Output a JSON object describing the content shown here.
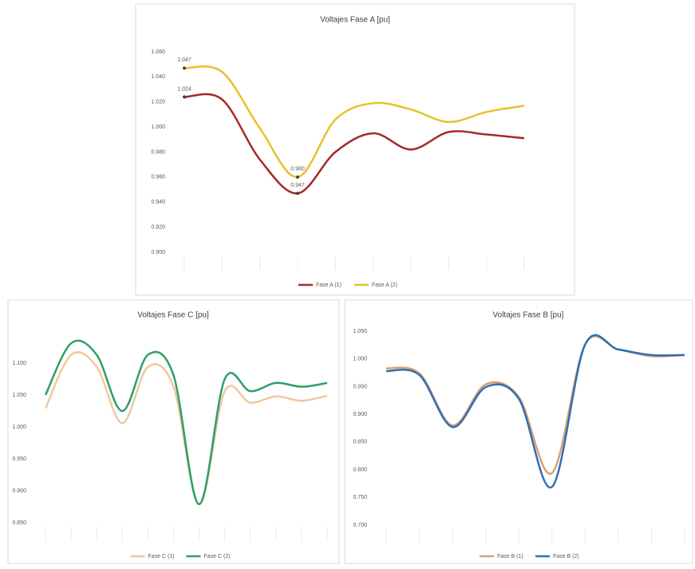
{
  "chart_data": [
    {
      "type": "line",
      "title": "Voltajes Fase A [pu]",
      "categories": [
        null,
        null,
        null,
        null,
        null,
        null,
        null,
        null,
        null,
        null
      ],
      "ylim": [
        0.9,
        1.06
      ],
      "yticks": [
        {
          "value": 1.06,
          "label": "1.060"
        },
        {
          "value": 1.04,
          "label": "1.040"
        },
        {
          "value": 1.02,
          "label": "1.020"
        },
        {
          "value": 1.0,
          "label": "1.000"
        },
        {
          "value": 0.98,
          "label": "0.980"
        },
        {
          "value": 0.96,
          "label": "0.960"
        },
        {
          "value": 0.94,
          "label": "0.940"
        },
        {
          "value": 0.92,
          "label": "0.920"
        },
        {
          "value": 0.9,
          "label": "0.900"
        }
      ],
      "series": [
        {
          "name": "Fase A (1)",
          "color": "#a52a2a",
          "values": [
            1.024,
            1.022,
            0.974,
            0.947,
            0.98,
            0.995,
            0.982,
            0.996,
            0.994,
            0.991
          ],
          "value_labels": [
            "1.024",
            null,
            null,
            "0.947",
            null,
            null,
            null,
            null,
            null,
            null
          ]
        },
        {
          "name": "Fase A (2)",
          "color": "#e6c229",
          "values": [
            1.047,
            1.044,
            0.999,
            0.96,
            1.006,
            1.019,
            1.014,
            1.004,
            1.012,
            1.017
          ],
          "value_labels": [
            "1.047",
            null,
            null,
            "0.960",
            null,
            null,
            null,
            null,
            null,
            null
          ]
        }
      ],
      "legend": "bottom",
      "grid": false
    },
    {
      "type": "line",
      "title": "Voltajes Fase C [pu]",
      "categories": [
        null,
        null,
        null,
        null,
        null,
        null,
        null,
        null,
        null,
        null,
        null,
        null
      ],
      "ylim": [
        0.85,
        1.1
      ],
      "yticks": [
        {
          "value": 1.1,
          "label": "1.100"
        },
        {
          "value": 1.05,
          "label": "1.050"
        },
        {
          "value": 1.0,
          "label": "1.000"
        },
        {
          "value": 0.95,
          "label": "0.950"
        },
        {
          "value": 0.9,
          "label": "0.900"
        },
        {
          "value": 0.85,
          "label": "0.850"
        }
      ],
      "series": [
        {
          "name": "Fase C (1)",
          "color": "#f0c8a0",
          "values": [
            1.029,
            1.113,
            1.094,
            1.006,
            1.094,
            1.063,
            0.879,
            1.056,
            1.038,
            1.048,
            1.041,
            1.049
          ]
        },
        {
          "name": "Fase C (2)",
          "color": "#2e9e6a",
          "values": [
            1.05,
            1.131,
            1.113,
            1.025,
            1.113,
            1.081,
            0.879,
            1.075,
            1.056,
            1.069,
            1.063,
            1.069
          ]
        }
      ],
      "legend": "bottom",
      "grid": false
    },
    {
      "type": "line",
      "title": "Voltajes Fase B [pu]",
      "categories": [
        null,
        null,
        null,
        null,
        null,
        null,
        null,
        null,
        null,
        null
      ],
      "ylim": [
        0.7,
        1.05
      ],
      "yticks": [
        {
          "value": 1.05,
          "label": "1.050"
        },
        {
          "value": 1.0,
          "label": "1.000"
        },
        {
          "value": 0.95,
          "label": "0.950"
        },
        {
          "value": 0.9,
          "label": "0.900"
        },
        {
          "value": 0.85,
          "label": "0.850"
        },
        {
          "value": 0.8,
          "label": "0.800"
        },
        {
          "value": 0.75,
          "label": "0.750"
        },
        {
          "value": 0.7,
          "label": "0.700"
        }
      ],
      "series": [
        {
          "name": "Fase B (1)",
          "color": "#d9a070",
          "values": [
            0.983,
            0.974,
            0.88,
            0.954,
            0.931,
            0.794,
            1.026,
            1.017,
            1.005,
            1.007
          ]
        },
        {
          "name": "Fase B (2)",
          "color": "#2f6fb5",
          "values": [
            0.978,
            0.971,
            0.877,
            0.949,
            0.928,
            0.769,
            1.026,
            1.017,
            1.007,
            1.007
          ]
        }
      ],
      "legend": "bottom",
      "grid": false
    }
  ]
}
